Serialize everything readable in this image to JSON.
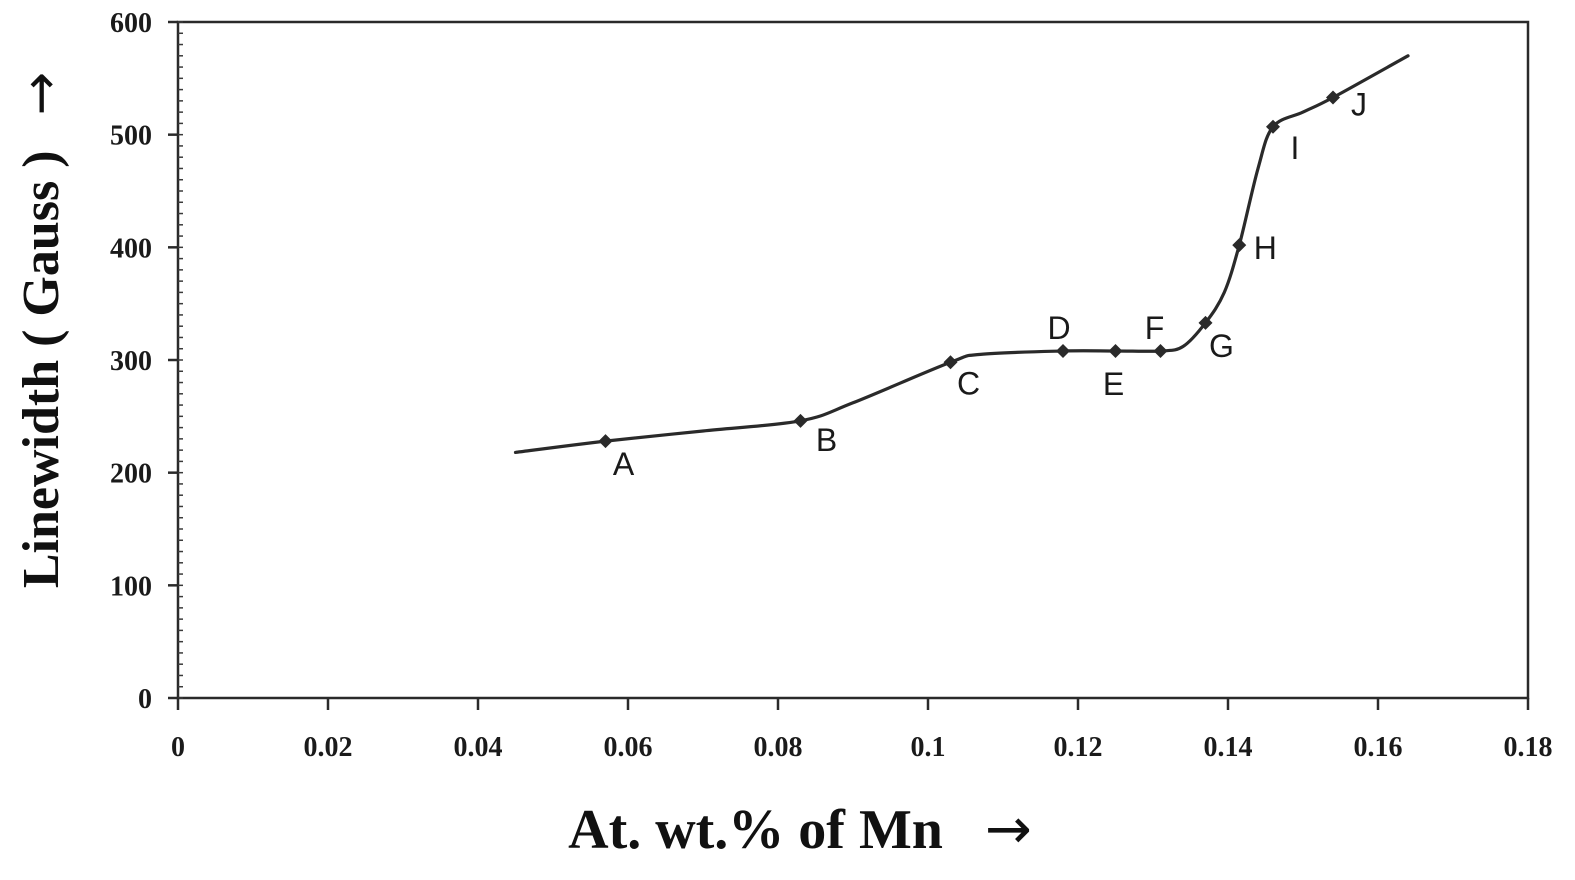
{
  "chart_data": {
    "type": "line",
    "title": "",
    "xlabel": "At. wt.% of Mn",
    "ylabel": "Linewidth ( Gauss )",
    "axis_arrow": "→",
    "xlim": [
      0,
      0.18
    ],
    "ylim": [
      0,
      600
    ],
    "x_ticks": [
      0,
      0.02,
      0.04,
      0.06,
      0.08,
      0.1,
      0.12,
      0.14,
      0.16,
      0.18
    ],
    "x_tick_labels": [
      "0",
      "0.02",
      "0.04",
      "0.06",
      "0.08",
      "0.1",
      "0.12",
      "0.14",
      "0.16",
      "0.18"
    ],
    "y_ticks": [
      0,
      100,
      200,
      300,
      400,
      500,
      600
    ],
    "y_tick_labels": [
      "0",
      "100",
      "200",
      "300",
      "400",
      "500",
      "600"
    ],
    "grid": false,
    "legend": "none",
    "line_color": "#2a2a2a",
    "curve": {
      "x": [
        0.045,
        0.057,
        0.07,
        0.083,
        0.09,
        0.103,
        0.107,
        0.118,
        0.125,
        0.131,
        0.134,
        0.137,
        0.1395,
        0.1415,
        0.144,
        0.146,
        0.15,
        0.154,
        0.164
      ],
      "y": [
        218,
        228,
        237,
        246,
        262,
        298,
        305,
        308,
        308,
        308,
        312,
        333,
        360,
        402,
        470,
        507,
        520,
        533,
        570
      ]
    },
    "points": [
      {
        "label": "A",
        "x": 0.057,
        "y": 228
      },
      {
        "label": "B",
        "x": 0.083,
        "y": 246
      },
      {
        "label": "C",
        "x": 0.103,
        "y": 298
      },
      {
        "label": "D",
        "x": 0.118,
        "y": 308
      },
      {
        "label": "E",
        "x": 0.125,
        "y": 308
      },
      {
        "label": "F",
        "x": 0.131,
        "y": 308
      },
      {
        "label": "G",
        "x": 0.137,
        "y": 333
      },
      {
        "label": "H",
        "x": 0.1415,
        "y": 402
      },
      {
        "label": "I",
        "x": 0.146,
        "y": 507
      },
      {
        "label": "J",
        "x": 0.154,
        "y": 533
      }
    ]
  }
}
